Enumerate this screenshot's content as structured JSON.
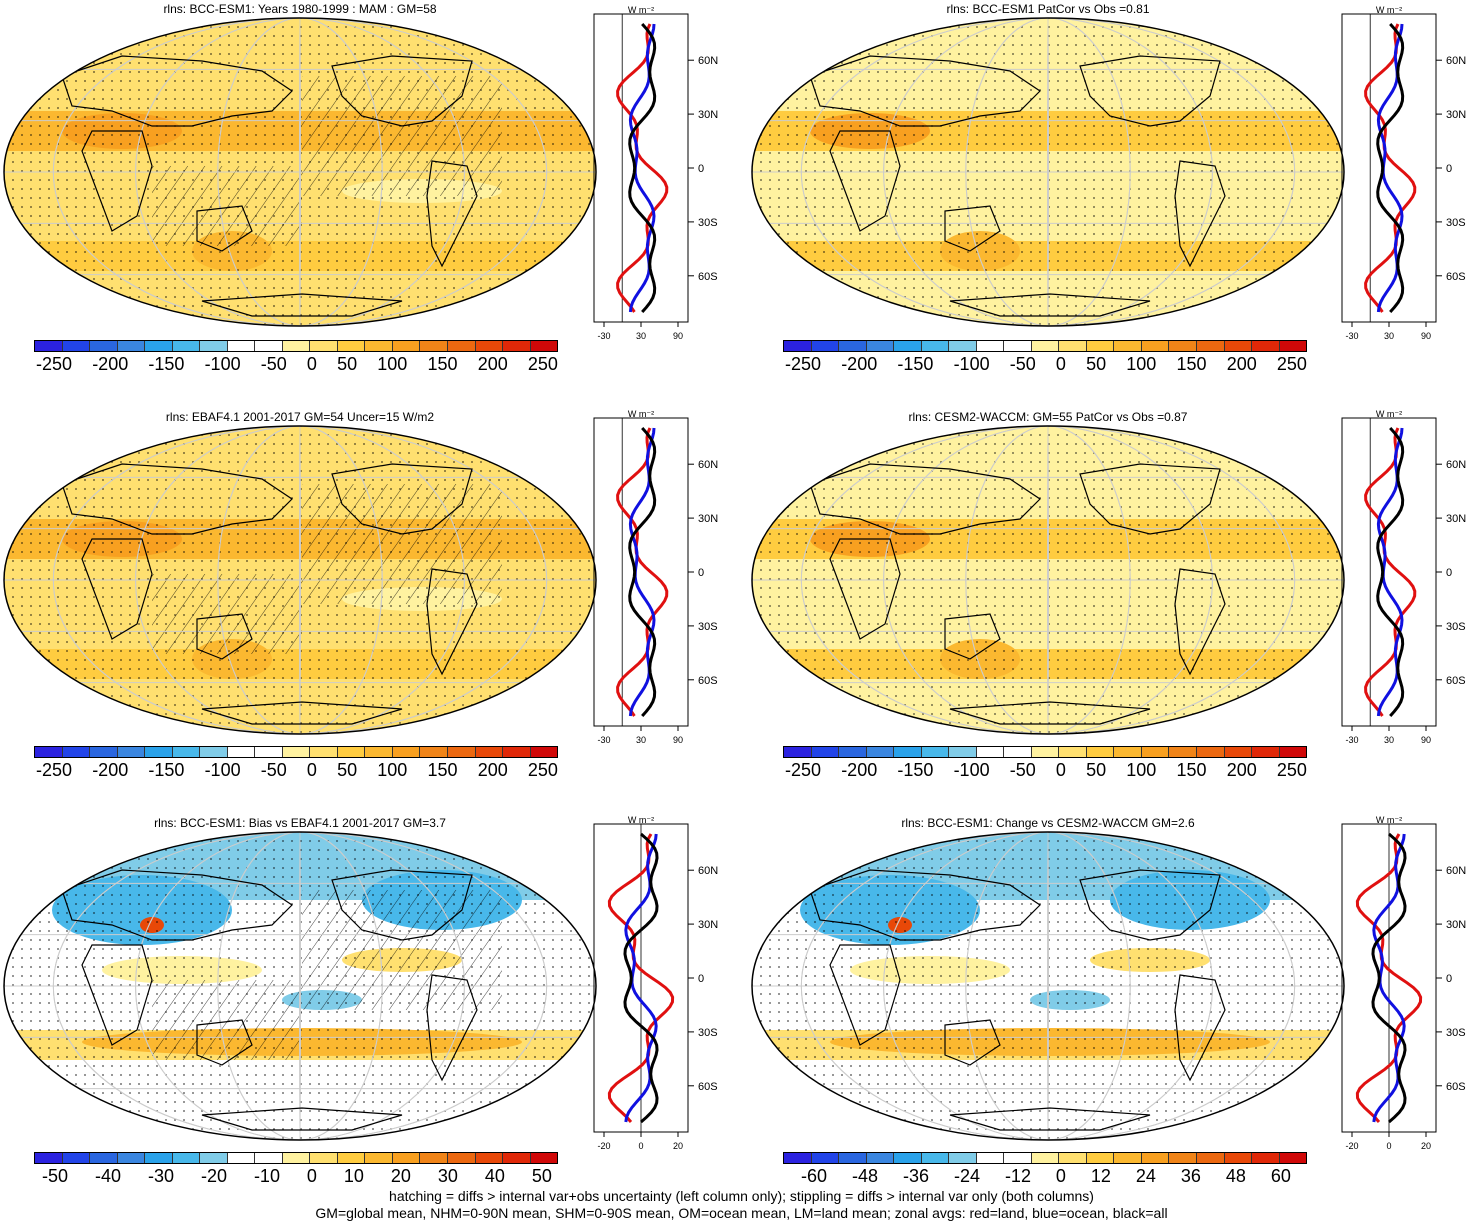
{
  "panels": [
    {
      "title": "rlns: BCC-ESM1: Years 1980-1999 : MAM : GM=58",
      "cbar_ticks": [
        "-250",
        "-200",
        "-150",
        "-100",
        "-50",
        "0",
        "50",
        "100",
        "150",
        "200",
        "250"
      ],
      "zonal_xticks": [
        "-30",
        "30",
        "90"
      ],
      "zonal_unit": "W m⁻²",
      "lat_ticks": [
        "60N",
        "30N",
        "0",
        "30S",
        "60S"
      ],
      "style": "warm"
    },
    {
      "title": "rlns: BCC-ESM1 PatCor vs Obs =0.81",
      "cbar_ticks": [
        "-250",
        "-200",
        "-150",
        "-100",
        "-50",
        "0",
        "50",
        "100",
        "150",
        "200",
        "250"
      ],
      "zonal_xticks": [
        "-30",
        "30",
        "90"
      ],
      "zonal_unit": "W m⁻²",
      "lat_ticks": [
        "60N",
        "30N",
        "0",
        "30S",
        "60S"
      ],
      "style": "warm-light"
    },
    {
      "title": "rlns: EBAF4.1 2001-2017 GM=54 Uncer=15 W/m2",
      "cbar_ticks": [
        "-250",
        "-200",
        "-150",
        "-100",
        "-50",
        "0",
        "50",
        "100",
        "150",
        "200",
        "250"
      ],
      "zonal_xticks": [
        "-30",
        "30",
        "90"
      ],
      "zonal_unit": "W m⁻²",
      "lat_ticks": [
        "60N",
        "30N",
        "0",
        "30S",
        "60S"
      ],
      "style": "warm"
    },
    {
      "title": "rlns: CESM2-WACCM: GM=55 PatCor vs Obs =0.87",
      "cbar_ticks": [
        "-250",
        "-200",
        "-150",
        "-100",
        "-50",
        "0",
        "50",
        "100",
        "150",
        "200",
        "250"
      ],
      "zonal_xticks": [
        "-30",
        "30",
        "90"
      ],
      "zonal_unit": "W m⁻²",
      "lat_ticks": [
        "60N",
        "30N",
        "0",
        "30S",
        "60S"
      ],
      "style": "warm-light"
    },
    {
      "title": "rlns: BCC-ESM1: Bias vs EBAF4.1 2001-2017 GM=3.7",
      "cbar_ticks": [
        "-50",
        "-40",
        "-30",
        "-20",
        "-10",
        "0",
        "10",
        "20",
        "30",
        "40",
        "50"
      ],
      "zonal_xticks": [
        "-20",
        "0",
        "20"
      ],
      "zonal_unit": "W m⁻²",
      "lat_ticks": [
        "60N",
        "30N",
        "0",
        "30S",
        "60S"
      ],
      "style": "diff"
    },
    {
      "title": "rlns: BCC-ESM1: Change vs CESM2-WACCM GM=2.6",
      "cbar_ticks": [
        "-60",
        "-48",
        "-36",
        "-24",
        "-12",
        "0",
        "12",
        "24",
        "36",
        "48",
        "60"
      ],
      "zonal_xticks": [
        "-20",
        "0",
        "20"
      ],
      "zonal_unit": "W m⁻²",
      "lat_ticks": [
        "60N",
        "30N",
        "0",
        "30S",
        "60S"
      ],
      "style": "diff"
    }
  ],
  "colors": {
    "palette": [
      "#2b22e0",
      "#2244e8",
      "#2a66e0",
      "#3a86e0",
      "#2aa2ea",
      "#48b8ea",
      "#80cce8",
      "#ffffff",
      "#ffffff",
      "#fff2a0",
      "#ffe070",
      "#ffcc40",
      "#fbb830",
      "#f8a020",
      "#f08418",
      "#ec6810",
      "#e84808",
      "#e02808",
      "#d00808"
    ],
    "zonal_land": "#e01010",
    "zonal_ocean": "#1010e0",
    "zonal_all": "#000000"
  },
  "footer": {
    "line1": "hatching = diffs > internal var+obs uncertainty (left column only); stippling = diffs > internal var only (both columns)",
    "line2": "GM=global mean, NHM=0-90N mean, SHM=0-90S mean, OM=ocean mean, LM=land mean; zonal avgs: red=land, blue=ocean, black=all"
  }
}
